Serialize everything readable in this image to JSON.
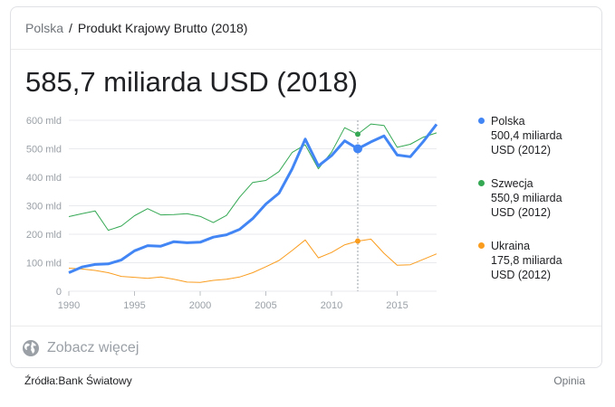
{
  "breadcrumb": {
    "country": "Polska",
    "separator": "/",
    "indicator": "Produkt Krajowy Brutto (2018)"
  },
  "headline": "585,7 miliarda USD (2018)",
  "colors": {
    "polska": "#4285f4",
    "szwecja": "#34a853",
    "ukraina": "#fa9d1f",
    "grid": "#e8eaed",
    "axis_text": "#9aa0a6"
  },
  "legend": [
    {
      "key": "polska",
      "name": "Polska",
      "value": "500,4 miliarda",
      "value2": "USD (2012)"
    },
    {
      "key": "szwecja",
      "name": "Szwecja",
      "value": "550,9 miliarda",
      "value2": "USD (2012)"
    },
    {
      "key": "ukraina",
      "name": "Ukraina",
      "value": "175,8 miliarda",
      "value2": "USD (2012)"
    }
  ],
  "chart_data": {
    "type": "line",
    "title": "",
    "xlabel": "",
    "ylabel": "",
    "xlim": [
      1990,
      2018
    ],
    "ylim": [
      0,
      600
    ],
    "yticks": [
      0,
      100,
      200,
      300,
      400,
      500,
      600
    ],
    "ytick_labels": [
      "0",
      "100 mld",
      "200 mld",
      "300 mld",
      "400 mld",
      "500 mld",
      "600 mld"
    ],
    "xticks": [
      1990,
      1995,
      2000,
      2005,
      2010,
      2015
    ],
    "xtick_labels": [
      "1990",
      "1995",
      "2000",
      "2005",
      "2010",
      "2015"
    ],
    "grid": true,
    "legend_position": "right",
    "highlight_x": 2012,
    "x": [
      1990,
      1991,
      1992,
      1993,
      1994,
      1995,
      1996,
      1997,
      1998,
      1999,
      2000,
      2001,
      2002,
      2003,
      2004,
      2005,
      2006,
      2007,
      2008,
      2009,
      2010,
      2011,
      2012,
      2013,
      2014,
      2015,
      2016,
      2017,
      2018
    ],
    "series": [
      {
        "name": "Polska",
        "key": "polska",
        "values": [
          65,
          85,
          94,
          96,
          110,
          142,
          160,
          158,
          174,
          170,
          172,
          190,
          198,
          217,
          255,
          306,
          344,
          429,
          534,
          440,
          476,
          528,
          500,
          524,
          545,
          478,
          472,
          526,
          586
        ]
      },
      {
        "name": "Szwecja",
        "key": "szwecja",
        "values": [
          262,
          272,
          282,
          214,
          229,
          265,
          290,
          268,
          269,
          272,
          263,
          241,
          266,
          330,
          382,
          389,
          420,
          487,
          514,
          430,
          488,
          574,
          551,
          587,
          582,
          505,
          516,
          541,
          556
        ]
      },
      {
        "name": "Ukraina",
        "key": "ukraina",
        "values": [
          81,
          78,
          73,
          65,
          52,
          49,
          45,
          50,
          42,
          32,
          31,
          38,
          42,
          50,
          65,
          86,
          108,
          143,
          180,
          117,
          136,
          163,
          176,
          183,
          133,
          91,
          93,
          112,
          131
        ]
      }
    ]
  },
  "more": {
    "label": "Zobacz więcej"
  },
  "footer": {
    "source": "Źródła:Bank Światowy",
    "feedback": "Opinia"
  }
}
